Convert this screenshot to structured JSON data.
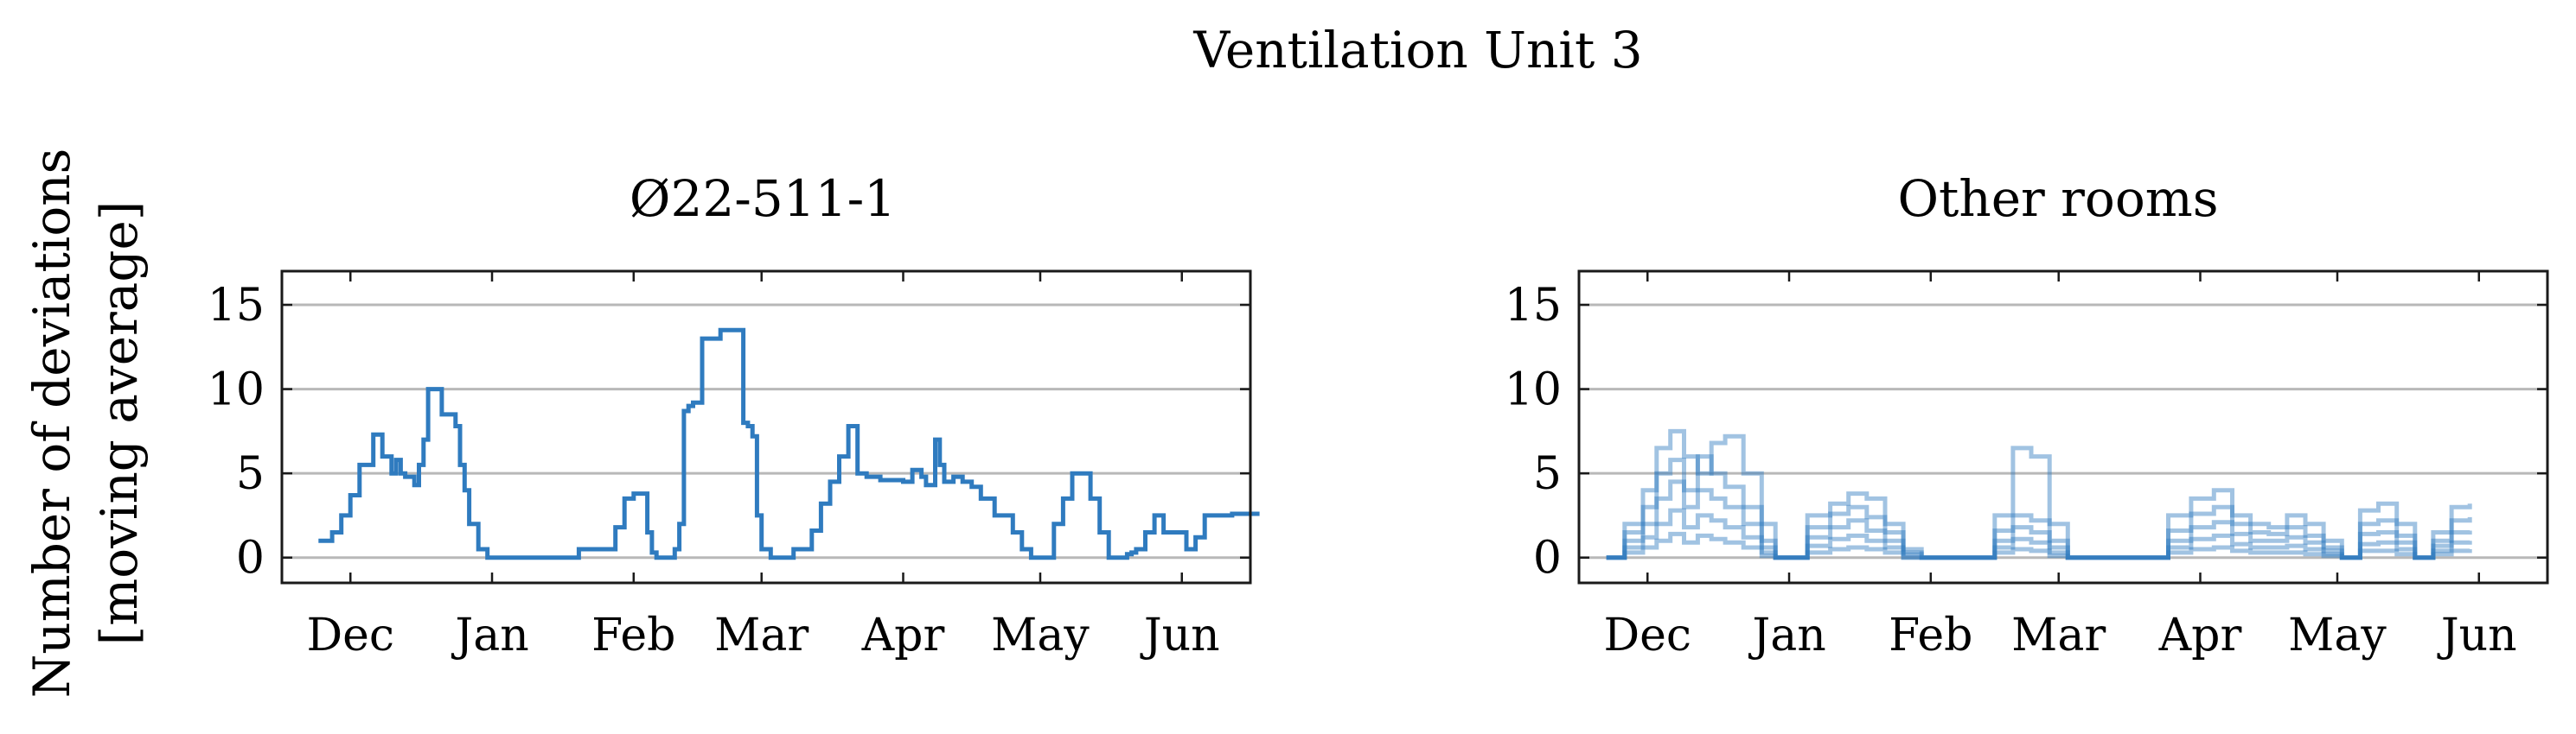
{
  "figure": {
    "title": "Ventilation Unit 3",
    "ylabel_line1": "Number of deviations",
    "ylabel_line2": "[moving average]"
  },
  "chart_data": [
    {
      "type": "line",
      "title": "Ø22-511-1",
      "xlabel": "",
      "ylabel": "Number of deviations [moving average]",
      "x_ticks": [
        "Dec",
        "Jan",
        "Feb",
        "Mar",
        "Apr",
        "May",
        "Jun"
      ],
      "y_ticks": [
        0,
        5,
        10,
        15
      ],
      "ylim": [
        -1.5,
        17
      ],
      "grid": "horizontal",
      "step": true,
      "series": [
        {
          "color": "#2f7bbf",
          "opacity": 1,
          "x": [
            "11-24",
            "11-27",
            "11-29",
            "12-01",
            "12-03",
            "12-06",
            "12-08",
            "12-10",
            "12-11",
            "12-12",
            "12-13",
            "12-15",
            "12-16",
            "12-17",
            "12-18",
            "12-19",
            "12-21",
            "12-24",
            "12-25",
            "12-26",
            "12-27",
            "12-28",
            "12-29",
            "12-31",
            "01-02",
            "01-04",
            "01-06",
            "01-10",
            "01-20",
            "01-28",
            "01-30",
            "02-01",
            "02-02",
            "02-04",
            "02-05",
            "02-06",
            "02-09",
            "02-10",
            "02-11",
            "02-12",
            "02-13",
            "02-14",
            "02-16",
            "02-20",
            "02-25",
            "02-26",
            "02-27",
            "02-28",
            "03-01",
            "03-03",
            "03-04",
            "03-05",
            "03-08",
            "03-12",
            "03-14",
            "03-16",
            "03-18",
            "03-20",
            "03-22",
            "03-24",
            "03-27",
            "04-01",
            "04-03",
            "04-05",
            "04-06",
            "04-08",
            "04-09",
            "04-10",
            "04-12",
            "04-14",
            "04-16",
            "04-18",
            "04-21",
            "04-25",
            "04-27",
            "04-29",
            "04-30",
            "05-02",
            "05-04",
            "05-06",
            "05-08",
            "05-10",
            "05-12",
            "05-14",
            "05-16",
            "05-18",
            "05-19",
            "05-20",
            "05-21",
            "05-22",
            "05-24",
            "05-26",
            "05-28",
            "05-31",
            "06-02",
            "06-04",
            "06-06",
            "06-08",
            "06-10",
            "06-12",
            "06-14",
            "06-16",
            "06-18"
          ],
          "y": [
            1,
            1.5,
            2.5,
            3.7,
            5.5,
            7.3,
            6,
            5,
            5.8,
            5,
            4.8,
            4.3,
            5.5,
            7,
            10,
            10,
            8.5,
            7.8,
            5.5,
            4,
            2,
            2,
            0.5,
            0,
            0,
            0,
            0,
            0,
            0.5,
            1.8,
            3.5,
            3.8,
            3.8,
            1.5,
            0.3,
            0,
            0,
            0.5,
            2,
            8.7,
            9,
            9.2,
            13,
            13.5,
            8,
            7.8,
            7.2,
            2.5,
            0.5,
            0,
            0,
            0,
            0.5,
            1.6,
            3.2,
            4.5,
            6,
            7.8,
            5,
            4.8,
            4.6,
            4.5,
            5.2,
            4.8,
            4.3,
            7,
            5.5,
            4.5,
            4.8,
            4.5,
            4.2,
            3.5,
            2.5,
            1.5,
            0.5,
            0,
            0,
            0,
            2,
            3.5,
            5,
            5,
            3.5,
            1.5,
            0,
            0,
            0,
            0.2,
            0.3,
            0.5,
            1.5,
            2.5,
            1.5,
            1.5,
            0.5,
            1.2,
            2.5,
            2.5,
            2.5,
            2.6,
            2.6,
            2.6,
            2.6
          ]
        }
      ]
    },
    {
      "type": "line",
      "title": "Other rooms",
      "xlabel": "",
      "ylabel": "",
      "x_ticks": [
        "Dec",
        "Jan",
        "Feb",
        "Mar",
        "Apr",
        "May",
        "Jun"
      ],
      "y_ticks": [
        0,
        5,
        10,
        15
      ],
      "ylim": [
        -1.5,
        17
      ],
      "grid": "horizontal",
      "step": true,
      "note": "Many overlapping semi-transparent room series; values approximate.",
      "series": [
        {
          "color": "#2f7bbf",
          "opacity": 0.45,
          "x": [
            "11-22",
            "11-26",
            "11-30",
            "12-03",
            "12-06",
            "12-09",
            "12-12",
            "12-15",
            "12-18",
            "12-22",
            "12-26",
            "12-29",
            "01-01",
            "01-05",
            "01-10",
            "01-14",
            "01-18",
            "01-22",
            "01-26",
            "01-30",
            "02-03",
            "02-07",
            "02-11",
            "02-15",
            "02-19",
            "02-23",
            "02-27",
            "03-03",
            "03-20",
            "03-25",
            "03-30",
            "04-04",
            "04-08",
            "04-12",
            "04-16",
            "04-20",
            "04-24",
            "04-28",
            "05-02",
            "05-06",
            "05-10",
            "05-14",
            "05-18",
            "05-22",
            "05-26",
            "05-30"
          ],
          "y": [
            0,
            2,
            4,
            6.5,
            7.5,
            6,
            5,
            6.8,
            7.2,
            5,
            2,
            0,
            0,
            2.5,
            3.2,
            3.8,
            3.5,
            2,
            0.5,
            0,
            0,
            0,
            0,
            2.5,
            6.5,
            6,
            2,
            0,
            0,
            2.5,
            3.5,
            4,
            2.5,
            2,
            1.8,
            2.5,
            2,
            1,
            0,
            2.8,
            3.2,
            2,
            0,
            1.5,
            3,
            3.2
          ]
        },
        {
          "color": "#2f7bbf",
          "opacity": 0.45,
          "x": [
            "11-22",
            "11-26",
            "11-30",
            "12-03",
            "12-06",
            "12-09",
            "12-12",
            "12-15",
            "12-18",
            "12-22",
            "12-26",
            "12-29",
            "01-01",
            "01-05",
            "01-10",
            "01-14",
            "01-18",
            "01-22",
            "01-26",
            "01-30",
            "02-03",
            "02-07",
            "02-11",
            "02-15",
            "02-19",
            "02-23",
            "02-27",
            "03-03",
            "03-20",
            "03-25",
            "03-30",
            "04-04",
            "04-08",
            "04-12",
            "04-16",
            "04-20",
            "04-24",
            "04-28",
            "05-02",
            "05-06",
            "05-10",
            "05-14",
            "05-18",
            "05-22",
            "05-26",
            "05-30"
          ],
          "y": [
            0,
            1.5,
            3,
            5,
            5.8,
            4,
            6,
            5,
            4.2,
            3,
            1,
            0,
            0,
            1.8,
            2.6,
            3,
            2.4,
            1.5,
            0.3,
            0,
            0,
            0,
            0,
            1.6,
            2.5,
            2.2,
            1,
            0,
            0,
            1.6,
            2.6,
            3,
            2,
            1.5,
            1.4,
            1.8,
            1.3,
            0.6,
            0,
            2,
            2.2,
            1.3,
            0,
            1,
            2.2,
            2.4
          ]
        },
        {
          "color": "#2f7bbf",
          "opacity": 0.45,
          "x": [
            "11-22",
            "11-26",
            "11-30",
            "12-03",
            "12-06",
            "12-09",
            "12-12",
            "12-15",
            "12-18",
            "12-22",
            "12-26",
            "12-29",
            "01-01",
            "01-05",
            "01-10",
            "01-14",
            "01-18",
            "01-22",
            "01-26",
            "01-30",
            "02-03",
            "02-07",
            "02-11",
            "02-15",
            "02-19",
            "02-23",
            "02-27",
            "03-03",
            "03-20",
            "03-25",
            "03-30",
            "04-04",
            "04-08",
            "04-12",
            "04-16",
            "04-20",
            "04-24",
            "04-28",
            "05-02",
            "05-06",
            "05-10",
            "05-14",
            "05-18",
            "05-22",
            "05-26",
            "05-30"
          ],
          "y": [
            0,
            1,
            2,
            3.5,
            4.5,
            3,
            4,
            3.5,
            3,
            2,
            0.6,
            0,
            0,
            1.2,
            1.8,
            2.2,
            1.6,
            1,
            0.2,
            0,
            0,
            0,
            0,
            1,
            1.8,
            1.5,
            0.6,
            0,
            0,
            1,
            1.8,
            2.1,
            1.4,
            1,
            1,
            1.2,
            0.9,
            0.4,
            0,
            1.4,
            1.5,
            0.9,
            0,
            0.7,
            1.5,
            1.6
          ]
        },
        {
          "color": "#2f7bbf",
          "opacity": 0.45,
          "x": [
            "11-22",
            "11-26",
            "11-30",
            "12-03",
            "12-06",
            "12-09",
            "12-12",
            "12-15",
            "12-18",
            "12-22",
            "12-26",
            "12-29",
            "01-01",
            "01-05",
            "01-10",
            "01-14",
            "01-18",
            "01-22",
            "01-26",
            "01-30",
            "02-03",
            "02-07",
            "02-11",
            "02-15",
            "02-19",
            "02-23",
            "02-27",
            "03-03",
            "03-20",
            "03-25",
            "03-30",
            "04-04",
            "04-08",
            "04-12",
            "04-16",
            "04-20",
            "04-24",
            "04-28",
            "05-02",
            "05-06",
            "05-10",
            "05-14",
            "05-18",
            "05-22",
            "05-26",
            "05-30"
          ],
          "y": [
            0,
            0.6,
            1.2,
            2,
            2.8,
            1.8,
            2.5,
            2.2,
            1.8,
            1.2,
            0.3,
            0,
            0,
            0.7,
            1.1,
            1.3,
            1,
            0.6,
            0,
            0,
            0,
            0,
            0,
            0.6,
            1.1,
            0.9,
            0.3,
            0,
            0,
            0.6,
            1.1,
            1.3,
            0.8,
            0.6,
            0.6,
            0.7,
            0.5,
            0.2,
            0,
            0.8,
            0.9,
            0.5,
            0,
            0.4,
            0.9,
            1
          ]
        },
        {
          "color": "#2f7bbf",
          "opacity": 0.45,
          "x": [
            "11-22",
            "11-26",
            "11-30",
            "12-03",
            "12-06",
            "12-09",
            "12-12",
            "12-15",
            "12-18",
            "12-22",
            "12-26",
            "12-29",
            "01-01",
            "01-05",
            "01-10",
            "01-14",
            "01-18",
            "01-22",
            "01-26",
            "01-30",
            "02-03",
            "02-07",
            "02-11",
            "02-15",
            "02-19",
            "02-23",
            "02-27",
            "03-03",
            "03-20",
            "03-25",
            "03-30",
            "04-04",
            "04-08",
            "04-12",
            "04-16",
            "04-20",
            "04-24",
            "04-28",
            "05-02",
            "05-06",
            "05-10",
            "05-14",
            "05-18",
            "05-22",
            "05-26",
            "05-30"
          ],
          "y": [
            0,
            0.3,
            0.6,
            1,
            1.4,
            0.9,
            1.3,
            1.1,
            0.9,
            0.6,
            0.1,
            0,
            0,
            0.3,
            0.5,
            0.6,
            0.5,
            0.3,
            0,
            0,
            0,
            0,
            0,
            0.3,
            0.5,
            0.4,
            0.1,
            0,
            0,
            0.3,
            0.5,
            0.6,
            0.4,
            0.3,
            0.3,
            0.3,
            0.2,
            0.1,
            0,
            0.4,
            0.4,
            0.2,
            0,
            0.2,
            0.4,
            0.5
          ]
        }
      ]
    }
  ]
}
